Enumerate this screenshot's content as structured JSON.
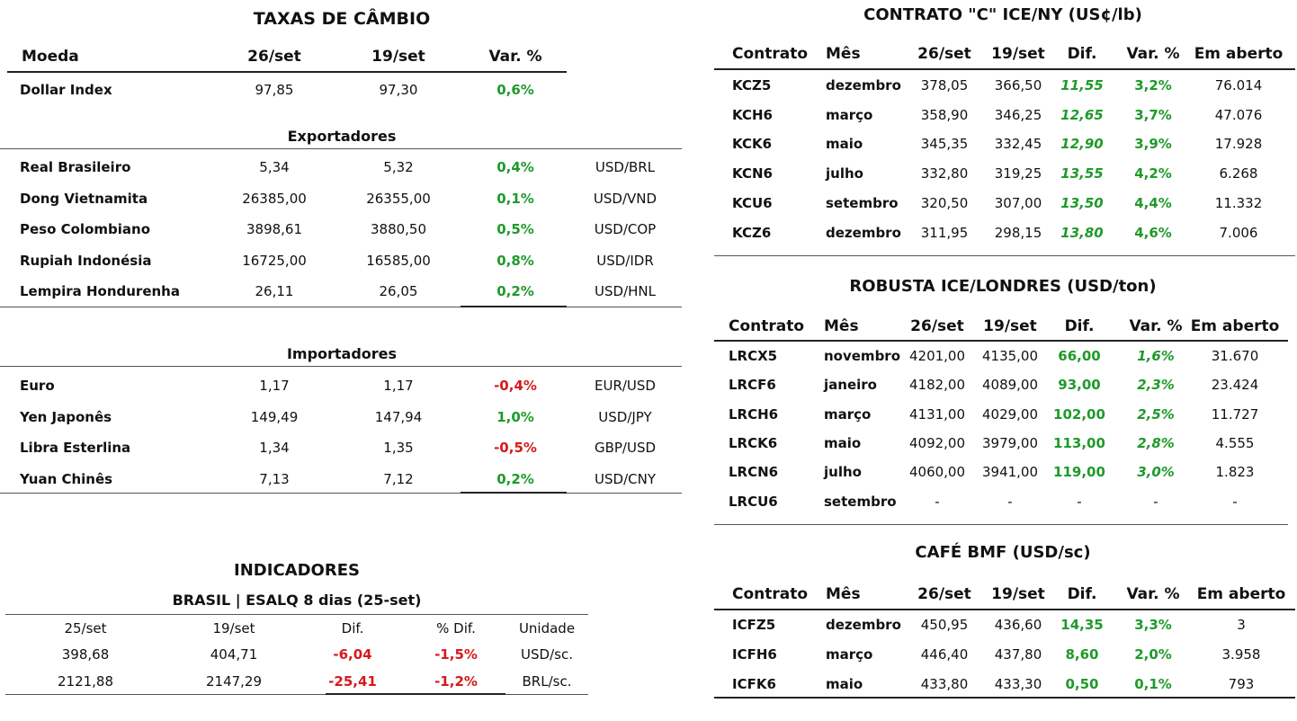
{
  "fx": {
    "title": "TAXAS DE CÂMBIO",
    "header": [
      "Moeda",
      "26/set",
      "19/set",
      "Var. %"
    ],
    "dollar_index": [
      "Dollar Index",
      "97,85",
      "97,30",
      "0,6%"
    ],
    "exporters_label": "Exportadores",
    "exporters": [
      [
        "Real Brasileiro",
        "5,34",
        "5,32",
        "0,4%",
        "USD/BRL"
      ],
      [
        "Dong Vietnamita",
        "26385,00",
        "26355,00",
        "0,1%",
        "USD/VND"
      ],
      [
        "Peso Colombiano",
        "3898,61",
        "3880,50",
        "0,5%",
        "USD/COP"
      ],
      [
        "Rupiah Indonésia",
        "16725,00",
        "16585,00",
        "0,8%",
        "USD/IDR"
      ],
      [
        "Lempira Hondurenha",
        "26,11",
        "26,05",
        "0,2%",
        "USD/HNL"
      ]
    ],
    "importers_label": "Importadores",
    "importers": [
      [
        "Euro",
        "1,17",
        "1,17",
        "-0,4%",
        "EUR/USD"
      ],
      [
        "Yen Japonês",
        "149,49",
        "147,94",
        "1,0%",
        "USD/JPY"
      ],
      [
        "Libra Esterlina",
        "1,34",
        "1,35",
        "-0,5%",
        "GBP/USD"
      ],
      [
        "Yuan Chinês",
        "7,13",
        "7,12",
        "0,2%",
        "USD/CNY"
      ]
    ]
  },
  "indicadores": {
    "title": "INDICADORES",
    "subtitle": "BRASIL | ESALQ 8 dias (25-set)",
    "header": [
      "25/set",
      "19/set",
      "Dif.",
      "% Dif.",
      "Unidade"
    ],
    "rows": [
      [
        "398,68",
        "404,71",
        "-6,04",
        "-1,5%",
        "USD/sc."
      ],
      [
        "2121,88",
        "2147,29",
        "-25,41",
        "-1,2%",
        "BRL/sc."
      ]
    ]
  },
  "ice_ny": {
    "title": "CONTRATO \"C\" ICE/NY (US¢/lb)",
    "header": [
      "Contrato",
      "Mês",
      "26/set",
      "19/set",
      "Dif.",
      "Var. %",
      "Em aberto"
    ],
    "rows": [
      [
        "KCZ5",
        "dezembro",
        "378,05",
        "366,50",
        "11,55",
        "3,2%",
        "76.014"
      ],
      [
        "KCH6",
        "março",
        "358,90",
        "346,25",
        "12,65",
        "3,7%",
        "47.076"
      ],
      [
        "KCK6",
        "maio",
        "345,35",
        "332,45",
        "12,90",
        "3,9%",
        "17.928"
      ],
      [
        "KCN6",
        "julho",
        "332,80",
        "319,25",
        "13,55",
        "4,2%",
        "6.268"
      ],
      [
        "KCU6",
        "setembro",
        "320,50",
        "307,00",
        "13,50",
        "4,4%",
        "11.332"
      ],
      [
        "KCZ6",
        "dezembro",
        "311,95",
        "298,15",
        "13,80",
        "4,6%",
        "7.006"
      ]
    ]
  },
  "robusta": {
    "title": "ROBUSTA ICE/LONDRES (USD/ton)",
    "header": [
      "Contrato",
      "Mês",
      "26/set",
      "19/set",
      "Dif.",
      "Var. %",
      "Em aberto"
    ],
    "rows": [
      [
        "LRCX5",
        "novembro",
        "4201,00",
        "4135,00",
        "66,00",
        "1,6%",
        "31.670"
      ],
      [
        "LRCF6",
        "janeiro",
        "4182,00",
        "4089,00",
        "93,00",
        "2,3%",
        "23.424"
      ],
      [
        "LRCH6",
        "março",
        "4131,00",
        "4029,00",
        "102,00",
        "2,5%",
        "11.727"
      ],
      [
        "LRCK6",
        "maio",
        "4092,00",
        "3979,00",
        "113,00",
        "2,8%",
        "4.555"
      ],
      [
        "LRCN6",
        "julho",
        "4060,00",
        "3941,00",
        "119,00",
        "3,0%",
        "1.823"
      ],
      [
        "LRCU6",
        "setembro",
        "-",
        "-",
        "-",
        "-",
        "-"
      ]
    ]
  },
  "bmf": {
    "title": "CAFÉ BMF (USD/sc)",
    "header": [
      "Contrato",
      "Mês",
      "26/set",
      "19/set",
      "Dif.",
      "Var. %",
      "Em aberto"
    ],
    "rows": [
      [
        "ICFZ5",
        "dezembro",
        "450,95",
        "436,60",
        "14,35",
        "3,3%",
        "3"
      ],
      [
        "ICFH6",
        "março",
        "446,40",
        "437,80",
        "8,60",
        "2,0%",
        "3.958"
      ],
      [
        "ICFK6",
        "maio",
        "433,80",
        "433,30",
        "0,50",
        "0,1%",
        "793"
      ]
    ]
  },
  "colors": {
    "positive": "#1f9a2a",
    "negative": "#d61a1a",
    "rule": "#555555"
  }
}
